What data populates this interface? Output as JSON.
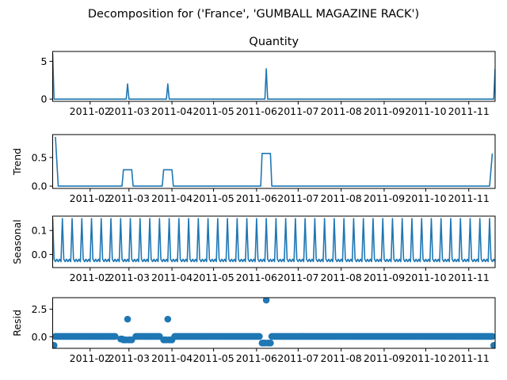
{
  "figure": {
    "suptitle": "Decomposition for ('France', 'GUMBALL MAGAZINE RACK')"
  },
  "colors": {
    "line": "#1f77b4",
    "axis": "#000000"
  },
  "x_axis": {
    "start": "2011-01-05",
    "end": "2011-11-20",
    "ticks": [
      {
        "date": "2011-02-01",
        "label": "2011-02"
      },
      {
        "date": "2011-03-01",
        "label": "2011-03"
      },
      {
        "date": "2011-04-01",
        "label": "2011-04"
      },
      {
        "date": "2011-05-01",
        "label": "2011-05"
      },
      {
        "date": "2011-06-01",
        "label": "2011-06"
      },
      {
        "date": "2011-07-01",
        "label": "2011-07"
      },
      {
        "date": "2011-08-01",
        "label": "2011-08"
      },
      {
        "date": "2011-09-01",
        "label": "2011-09"
      },
      {
        "date": "2011-10-01",
        "label": "2011-10"
      },
      {
        "date": "2011-11-01",
        "label": "2011-11"
      }
    ]
  },
  "chart_data": [
    {
      "type": "line",
      "title": "Quantity",
      "ylabel": "",
      "ylim": [
        -0.3,
        6.3
      ],
      "yticks": [
        {
          "value": 0,
          "label": "0"
        },
        {
          "value": 5,
          "label": "5"
        }
      ],
      "series": [
        {
          "points": [
            [
              "2011-01-05",
              6
            ],
            [
              "2011-01-06",
              0
            ],
            [
              "2011-02-27",
              0
            ],
            [
              "2011-02-28",
              2
            ],
            [
              "2011-03-01",
              0
            ],
            [
              "2011-03-28",
              0
            ],
            [
              "2011-03-29",
              2
            ],
            [
              "2011-03-30",
              0
            ],
            [
              "2011-06-07",
              0
            ],
            [
              "2011-06-08",
              4
            ],
            [
              "2011-06-09",
              0
            ],
            [
              "2011-11-19",
              0
            ],
            [
              "2011-11-20",
              4
            ]
          ]
        }
      ]
    },
    {
      "type": "line",
      "title": "",
      "ylabel": "Trend",
      "ylim": [
        -0.04,
        0.9
      ],
      "yticks": [
        {
          "value": 0,
          "label": "0.0"
        },
        {
          "value": 0.5,
          "label": "0.5"
        }
      ],
      "series": [
        {
          "points": [
            [
              "2011-01-07",
              0.86
            ],
            [
              "2011-01-09",
              0
            ],
            [
              "2011-02-24",
              0
            ],
            [
              "2011-02-25",
              0.286
            ],
            [
              "2011-03-03",
              0.286
            ],
            [
              "2011-03-04",
              0
            ],
            [
              "2011-03-25",
              0
            ],
            [
              "2011-03-26",
              0.286
            ],
            [
              "2011-04-01",
              0.286
            ],
            [
              "2011-04-02",
              0
            ],
            [
              "2011-06-04",
              0
            ],
            [
              "2011-06-05",
              0.571
            ],
            [
              "2011-06-11",
              0.571
            ],
            [
              "2011-06-12",
              0
            ],
            [
              "2011-11-16",
              0
            ],
            [
              "2011-11-18",
              0.571
            ]
          ]
        }
      ]
    },
    {
      "type": "line",
      "title": "",
      "ylabel": "Seasonal",
      "ylim": [
        -0.055,
        0.16
      ],
      "yticks": [
        {
          "value": 0,
          "label": "0.0"
        },
        {
          "value": 0.1,
          "label": "0.1"
        }
      ],
      "period_days": 7,
      "first_peak": "2011-01-12",
      "pattern": [
        0.15,
        -0.02,
        -0.03,
        -0.02,
        -0.03,
        -0.02,
        -0.03
      ],
      "series": [
        {
          "name": ""
        }
      ]
    },
    {
      "type": "scatter",
      "title": "",
      "ylabel": "Resid",
      "ylim": [
        -1.05,
        3.55
      ],
      "yticks": [
        {
          "value": 0,
          "label": "0.0"
        },
        {
          "value": 2.5,
          "label": "2.5"
        }
      ],
      "baseline": 0.03,
      "gap_dates": [
        "2011-02-20",
        "2011-02-21",
        "2011-02-22",
        "2011-02-23",
        "2011-02-24",
        "2011-02-25",
        "2011-02-26",
        "2011-03-04",
        "2011-03-05",
        "2011-03-24",
        "2011-03-25",
        "2011-03-26",
        "2011-03-27",
        "2011-03-28",
        "2011-03-29",
        "2011-03-30",
        "2011-04-01",
        "2011-04-02",
        "2011-06-04",
        "2011-06-05",
        "2011-06-06",
        "2011-06-09",
        "2011-06-10",
        "2011-06-11"
      ],
      "special": [
        [
          "2011-01-05",
          -0.78
        ],
        [
          "2011-01-06",
          -0.78
        ],
        [
          "2011-02-23",
          -0.2
        ],
        [
          "2011-02-24",
          -0.2
        ],
        [
          "2011-02-25",
          -0.28
        ],
        [
          "2011-02-26",
          -0.28
        ],
        [
          "2011-02-27",
          -0.28
        ],
        [
          "2011-02-28",
          1.6
        ],
        [
          "2011-03-01",
          -0.28
        ],
        [
          "2011-03-02",
          -0.28
        ],
        [
          "2011-03-03",
          -0.28
        ],
        [
          "2011-03-26",
          -0.28
        ],
        [
          "2011-03-27",
          -0.28
        ],
        [
          "2011-03-28",
          -0.28
        ],
        [
          "2011-03-29",
          1.6
        ],
        [
          "2011-03-30",
          -0.28
        ],
        [
          "2011-03-31",
          -0.28
        ],
        [
          "2011-04-01",
          -0.28
        ],
        [
          "2011-06-05",
          -0.57
        ],
        [
          "2011-06-06",
          -0.57
        ],
        [
          "2011-06-07",
          -0.57
        ],
        [
          "2011-06-08",
          3.33
        ],
        [
          "2011-06-09",
          -0.57
        ],
        [
          "2011-06-10",
          -0.57
        ],
        [
          "2011-06-11",
          -0.57
        ],
        [
          "2011-11-19",
          -0.78
        ],
        [
          "2011-11-20",
          -0.78
        ]
      ],
      "series": [
        {
          "name": ""
        }
      ]
    }
  ]
}
